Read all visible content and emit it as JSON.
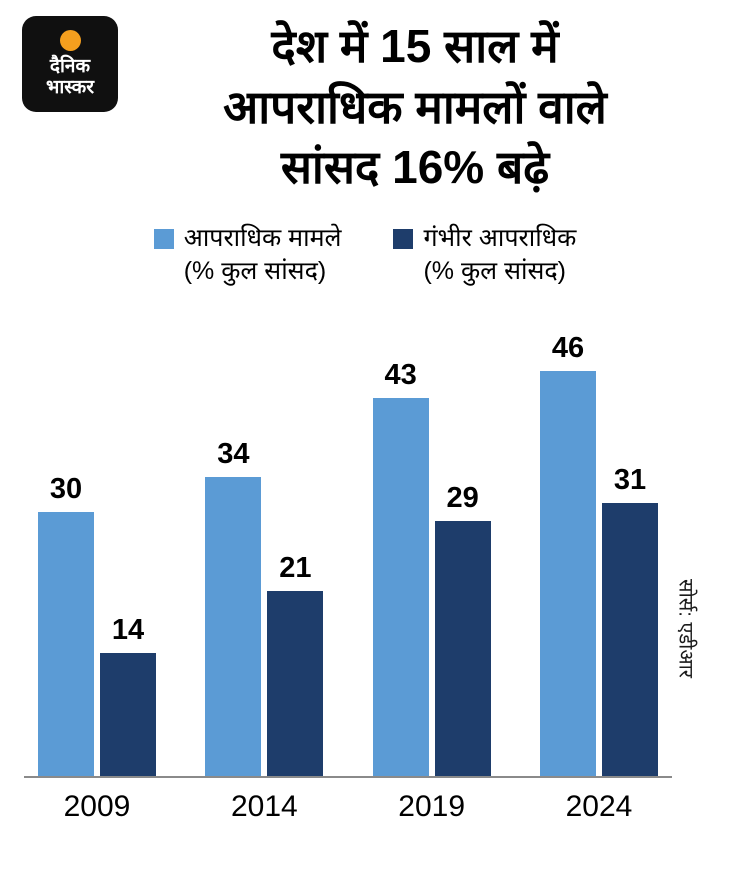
{
  "logo": {
    "line1": "दैनिक",
    "line2": "भास्कर",
    "dot_color": "#f59f1e"
  },
  "title_lines": [
    "देश में 15 साल में",
    "आपराधिक मामलों वाले",
    "सांसद 16% बढ़े"
  ],
  "legend": [
    {
      "label": "आपराधिक मामले",
      "sublabel": "(% कुल सांसद)",
      "color": "#5b9bd5"
    },
    {
      "label": "गंभीर आपराधिक",
      "sublabel": "(% कुल सांसद)",
      "color": "#1e3d6b"
    }
  ],
  "source": "सोर्स: एडीआर",
  "chart_data": {
    "type": "bar",
    "title": "देश में 15 साल में आपराधिक मामलों वाले सांसद 16% बढ़े",
    "categories": [
      "2009",
      "2014",
      "2019",
      "2024"
    ],
    "series": [
      {
        "name": "आपराधिक मामले (% कुल सांसद)",
        "color": "#5b9bd5",
        "values": [
          30,
          34,
          43,
          46
        ]
      },
      {
        "name": "गंभीर आपराधिक (% कुल सांसद)",
        "color": "#1e3d6b",
        "values": [
          14,
          21,
          29,
          31
        ]
      }
    ],
    "ylim": [
      0,
      50
    ],
    "grid": false,
    "legend_position": "top",
    "value_labels": true,
    "xlabel": "",
    "ylabel": ""
  }
}
